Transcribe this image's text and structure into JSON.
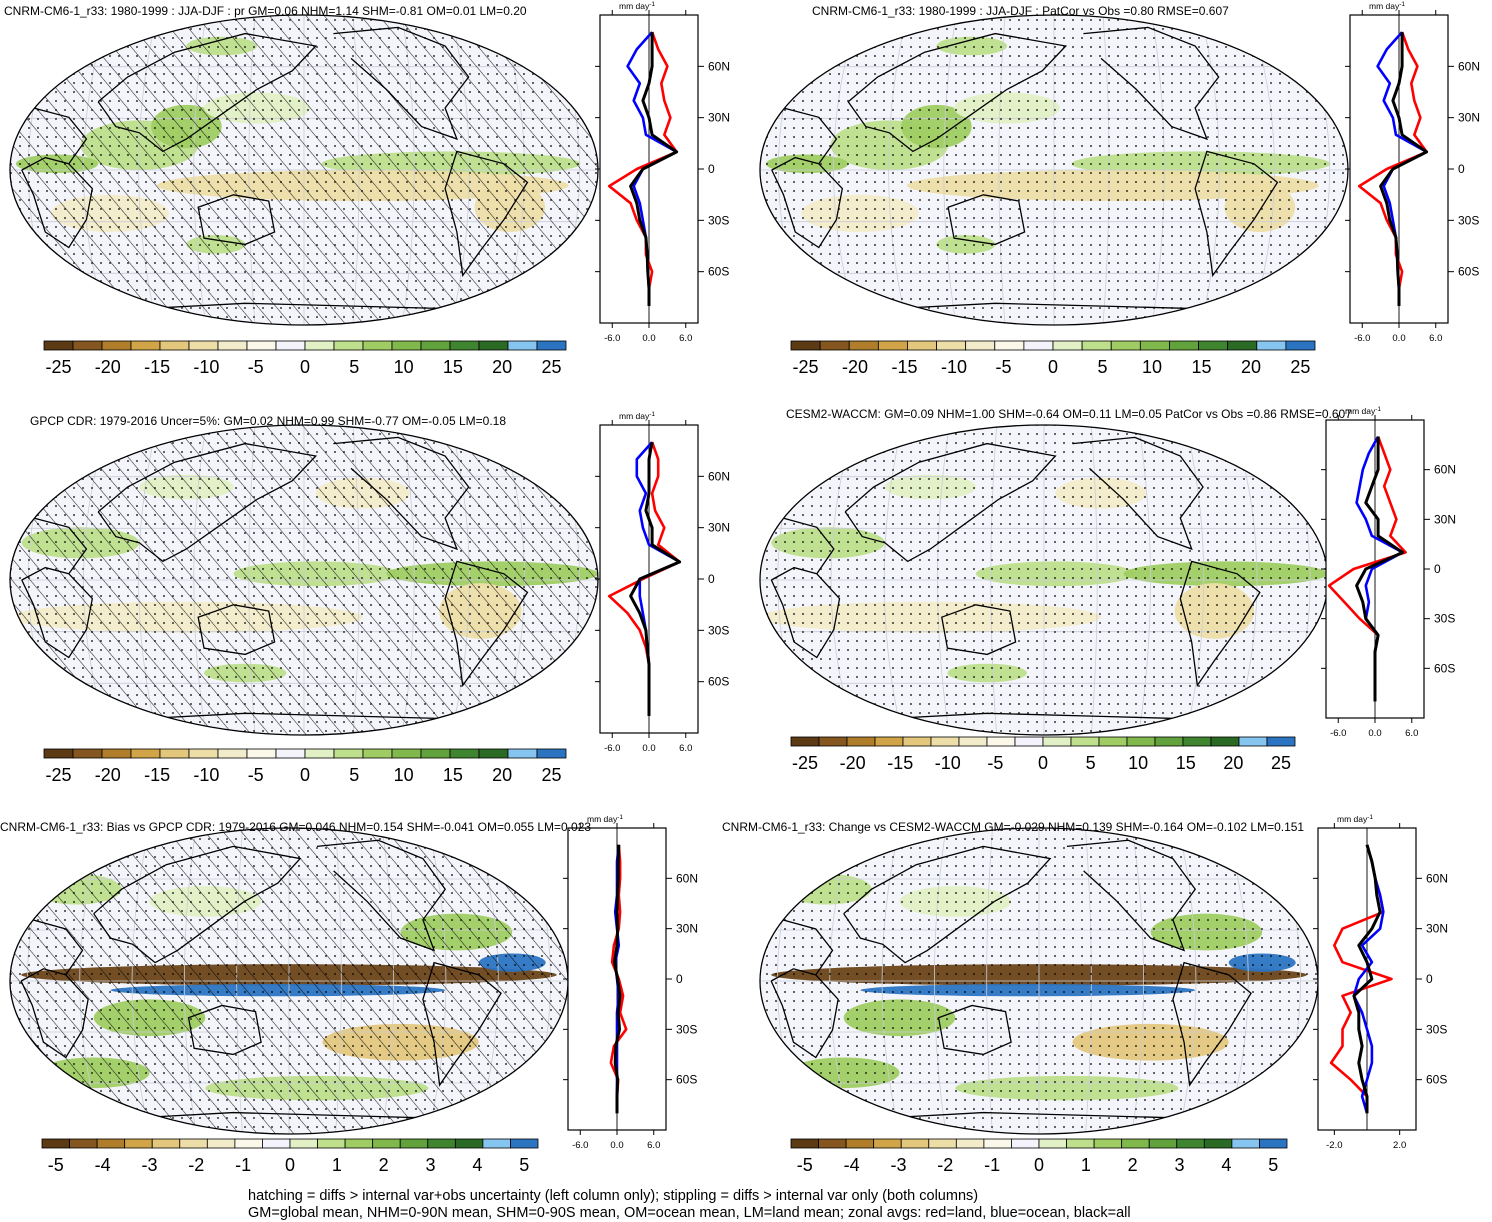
{
  "footer": {
    "line1": "hatching = diffs > internal var+obs uncertainty (left column only); stippling = diffs > internal var only (both columns)",
    "line2": "GM=global mean, NHM=0-90N mean, SHM=0-90S mean, OM=ocean mean, LM=land mean; zonal avgs: red=land, blue=ocean, black=all"
  },
  "chart_data": [
    {
      "type": "heatmap",
      "title": "CNRM-CM6-1_r33: 1980-1999 : JJA-DJF : pr GM=0.06 NHM=1.14 SHM=-0.81 OM=0.01 LM=0.20",
      "colorbar_ticks": [
        "-25",
        "-20",
        "-15",
        "-10",
        "-5",
        "0",
        "5",
        "10",
        "15",
        "20",
        "25"
      ],
      "zonal_units": "mm day",
      "zonal_units_sup": "-1",
      "zonal_xticks": [
        "-6.0",
        "0.0",
        "6.0"
      ],
      "zonal_xrange": [
        -8,
        8
      ],
      "lat_ticks": [
        "60N",
        "30N",
        "0",
        "30S",
        "60S"
      ],
      "hatching": true,
      "stippling": true,
      "zonal_series": [
        {
          "color": "#ff0000",
          "lat": [
            80,
            70,
            60,
            50,
            40,
            30,
            20,
            10,
            0,
            -10,
            -20,
            -30,
            -40,
            -50,
            -60,
            -70,
            -80
          ],
          "values": [
            0.5,
            1.5,
            3.0,
            2.0,
            2.5,
            3.5,
            2.5,
            4.5,
            -2.0,
            -6.5,
            -3.0,
            -2.0,
            -0.5,
            -0.5,
            0.5,
            0.0,
            0.0
          ]
        },
        {
          "color": "#0000ff",
          "lat": [
            80,
            70,
            60,
            50,
            40,
            30,
            20,
            10,
            0,
            -10,
            -20,
            -30,
            -40,
            -50,
            -60,
            -70,
            -80
          ],
          "values": [
            0.5,
            -2.0,
            -3.5,
            -1.5,
            -2.5,
            -1.0,
            -0.5,
            4.5,
            -1.0,
            -2.5,
            -1.5,
            -1.0,
            -0.5,
            -0.3,
            -0.2,
            0.0,
            0.0
          ]
        },
        {
          "color": "#000000",
          "lat": [
            80,
            70,
            60,
            50,
            40,
            30,
            20,
            10,
            0,
            -10,
            -20,
            -30,
            -40,
            -50,
            -60,
            -70,
            -80
          ],
          "values": [
            0.5,
            0.5,
            0.5,
            0.0,
            -1.0,
            0.0,
            0.5,
            4.5,
            -1.0,
            -3.0,
            -2.0,
            -1.5,
            -0.5,
            -0.3,
            -0.2,
            0.0,
            0.0
          ]
        }
      ]
    },
    {
      "type": "heatmap",
      "title": "CNRM-CM6-1_r33: 1980-1999 : JJA-DJF : PatCor vs Obs =0.80 RMSE=0.607",
      "colorbar_ticks": [
        "-25",
        "-20",
        "-15",
        "-10",
        "-5",
        "0",
        "5",
        "10",
        "15",
        "20",
        "25"
      ],
      "zonal_units": "mm day",
      "zonal_units_sup": "-1",
      "zonal_xticks": [
        "-6.0",
        "0.0",
        "6.0"
      ],
      "zonal_xrange": [
        -8,
        8
      ],
      "lat_ticks": [
        "60N",
        "30N",
        "0",
        "30S",
        "60S"
      ],
      "hatching": false,
      "stippling": true,
      "zonal_series": [
        {
          "color": "#ff0000",
          "lat": [
            80,
            70,
            60,
            50,
            40,
            30,
            20,
            10,
            0,
            -10,
            -20,
            -30,
            -40,
            -50,
            -60,
            -70,
            -80
          ],
          "values": [
            0.5,
            1.5,
            3.0,
            2.0,
            2.5,
            3.5,
            2.5,
            4.5,
            -2.0,
            -6.5,
            -3.0,
            -2.0,
            -0.5,
            -0.5,
            0.5,
            0.0,
            0.0
          ]
        },
        {
          "color": "#0000ff",
          "lat": [
            80,
            70,
            60,
            50,
            40,
            30,
            20,
            10,
            0,
            -10,
            -20,
            -30,
            -40,
            -50,
            -60,
            -70,
            -80
          ],
          "values": [
            0.5,
            -2.0,
            -3.5,
            -1.5,
            -2.5,
            -1.0,
            -0.5,
            4.5,
            -1.0,
            -2.5,
            -1.5,
            -1.0,
            -0.5,
            -0.3,
            -0.2,
            0.0,
            0.0
          ]
        },
        {
          "color": "#000000",
          "lat": [
            80,
            70,
            60,
            50,
            40,
            30,
            20,
            10,
            0,
            -10,
            -20,
            -30,
            -40,
            -50,
            -60,
            -70,
            -80
          ],
          "values": [
            0.5,
            0.5,
            0.5,
            0.0,
            -1.0,
            0.0,
            0.5,
            4.5,
            -1.0,
            -3.0,
            -2.0,
            -1.5,
            -0.5,
            -0.3,
            -0.2,
            0.0,
            0.0
          ]
        }
      ]
    },
    {
      "type": "heatmap",
      "title": "GPCP CDR: 1979-2016 Uncer=5%: GM=0.02 NHM=0.99 SHM=-0.77 OM=-0.05 LM=0.18",
      "colorbar_ticks": [
        "-25",
        "-20",
        "-15",
        "-10",
        "-5",
        "0",
        "5",
        "10",
        "15",
        "20",
        "25"
      ],
      "zonal_units": "mm day",
      "zonal_units_sup": "-1",
      "zonal_xticks": [
        "-6.0",
        "0.0",
        "6.0"
      ],
      "zonal_xrange": [
        -8,
        8
      ],
      "lat_ticks": [
        "60N",
        "30N",
        "0",
        "30S",
        "60S"
      ],
      "hatching": true,
      "stippling": true,
      "zonal_series": [
        {
          "color": "#ff0000",
          "lat": [
            80,
            70,
            60,
            50,
            40,
            30,
            20,
            10,
            0,
            -10,
            -20,
            -30,
            -40,
            -50,
            -60,
            -70,
            -80
          ],
          "values": [
            0.5,
            1.5,
            1.5,
            0.5,
            1.0,
            2.5,
            1.5,
            5.0,
            -1.0,
            -6.5,
            -3.5,
            -1.5,
            -0.5,
            0.0,
            0.0,
            0.0,
            0.0
          ]
        },
        {
          "color": "#0000ff",
          "lat": [
            80,
            70,
            60,
            50,
            40,
            30,
            20,
            10,
            0,
            -10,
            -20,
            -30,
            -40,
            -50,
            -60,
            -70,
            -80
          ],
          "values": [
            0.5,
            -2.0,
            -2.0,
            -0.5,
            -1.5,
            -1.0,
            0.0,
            5.0,
            -1.5,
            -1.5,
            -1.0,
            -0.5,
            -0.3,
            0.0,
            0.0,
            0.0,
            0.0
          ]
        },
        {
          "color": "#000000",
          "lat": [
            80,
            70,
            60,
            50,
            40,
            30,
            20,
            10,
            0,
            -10,
            -20,
            -30,
            -40,
            -50,
            -60,
            -70,
            -80
          ],
          "values": [
            0.5,
            0.0,
            0.0,
            0.0,
            -0.5,
            0.5,
            0.5,
            5.0,
            -1.5,
            -3.0,
            -1.5,
            -0.5,
            -0.3,
            0.0,
            0.0,
            0.0,
            0.0
          ]
        }
      ]
    },
    {
      "type": "heatmap",
      "title": "CESM2-WACCM: GM=0.09 NHM=1.00 SHM=-0.64 OM=0.11 LM=0.05 PatCor vs Obs =0.86 RMSE=0.607",
      "colorbar_ticks": [
        "-25",
        "-20",
        "-15",
        "-10",
        "-5",
        "0",
        "5",
        "10",
        "15",
        "20",
        "25"
      ],
      "zonal_units": "mm day",
      "zonal_units_sup": "-1",
      "zonal_xticks": [
        "-6.0",
        "0.0",
        "6.0"
      ],
      "zonal_xrange": [
        -8,
        8
      ],
      "lat_ticks": [
        "60N",
        "30N",
        "0",
        "30S",
        "60S"
      ],
      "hatching": false,
      "stippling": true,
      "zonal_series": [
        {
          "color": "#ff0000",
          "lat": [
            80,
            70,
            60,
            50,
            40,
            30,
            20,
            10,
            0,
            -10,
            -20,
            -30,
            -40,
            -50,
            -60,
            -70,
            -80
          ],
          "values": [
            0.5,
            1.5,
            2.5,
            1.5,
            2.5,
            3.5,
            2.5,
            5.0,
            -3.5,
            -7.5,
            -5.0,
            -2.5,
            0.5,
            0.0,
            0.0,
            0.0,
            0.0
          ]
        },
        {
          "color": "#0000ff",
          "lat": [
            80,
            70,
            60,
            50,
            40,
            30,
            20,
            10,
            0,
            -10,
            -20,
            -30,
            -40,
            -50,
            -60,
            -70,
            -80
          ],
          "values": [
            0.5,
            -1.0,
            -2.0,
            -2.5,
            -3.0,
            -1.5,
            -0.5,
            4.5,
            -0.5,
            -1.5,
            -1.0,
            -1.5,
            0.5,
            0.0,
            0.0,
            0.0,
            0.0
          ]
        },
        {
          "color": "#000000",
          "lat": [
            80,
            70,
            60,
            50,
            40,
            30,
            20,
            10,
            0,
            -10,
            -20,
            -30,
            -40,
            -50,
            -60,
            -70,
            -80
          ],
          "values": [
            0.5,
            0.5,
            0.5,
            -0.5,
            -1.5,
            0.5,
            0.5,
            4.5,
            -1.5,
            -3.0,
            -2.0,
            -1.5,
            0.5,
            0.0,
            0.0,
            0.0,
            0.0
          ]
        }
      ]
    },
    {
      "type": "heatmap",
      "title": "CNRM-CM6-1_r33: Bias vs GPCP CDR: 1979-2016 GM=0.046 NHM=0.154 SHM=-0.041 OM=0.055 LM=0.023",
      "colorbar_ticks": [
        "-5",
        "-4",
        "-3",
        "-2",
        "-1",
        "0",
        "1",
        "2",
        "3",
        "4",
        "5"
      ],
      "zonal_units": "mm day",
      "zonal_units_sup": "-1",
      "zonal_xticks": [
        "-6.0",
        "0.0",
        "6.0"
      ],
      "zonal_xrange": [
        -8,
        8
      ],
      "lat_ticks": [
        "60N",
        "30N",
        "0",
        "30S",
        "60S"
      ],
      "hatching": true,
      "stippling": true,
      "zonal_series": [
        {
          "color": "#ff0000",
          "lat": [
            80,
            70,
            60,
            50,
            40,
            30,
            20,
            10,
            0,
            -10,
            -20,
            -30,
            -40,
            -50,
            -60,
            -70,
            -80
          ],
          "values": [
            0.3,
            0.5,
            0.5,
            0.3,
            0.5,
            0.3,
            -0.5,
            -0.8,
            0.3,
            1.0,
            0.5,
            1.5,
            -0.5,
            -1.0,
            0.2,
            0.0,
            0.0
          ]
        },
        {
          "color": "#0000ff",
          "lat": [
            80,
            70,
            60,
            50,
            40,
            30,
            20,
            10,
            0,
            -10,
            -20,
            -30,
            -40,
            -50,
            -60,
            -70,
            -80
          ],
          "values": [
            0.3,
            0.0,
            0.0,
            0.0,
            -0.3,
            0.0,
            0.3,
            -0.3,
            0.0,
            0.3,
            0.0,
            0.0,
            0.0,
            0.0,
            0.0,
            0.0,
            0.0
          ]
        },
        {
          "color": "#000000",
          "lat": [
            80,
            70,
            60,
            50,
            40,
            30,
            20,
            10,
            0,
            -10,
            -20,
            -30,
            -40,
            -50,
            -60,
            -70,
            -80
          ],
          "values": [
            0.3,
            0.2,
            0.2,
            0.1,
            0.0,
            0.1,
            0.0,
            -0.4,
            0.1,
            0.5,
            0.2,
            0.4,
            -0.2,
            -0.3,
            0.1,
            0.0,
            0.0
          ]
        }
      ]
    },
    {
      "type": "heatmap",
      "title": "CNRM-CM6-1_r33: Change vs CESM2-WACCM GM=-0.029 NHM=0.139 SHM=-0.164 OM=-0.102 LM=0.151",
      "colorbar_ticks": [
        "-5",
        "-4",
        "-3",
        "-2",
        "-1",
        "0",
        "1",
        "2",
        "3",
        "4",
        "5"
      ],
      "zonal_units": "mm day",
      "zonal_units_sup": "-1",
      "zonal_xticks": [
        "-2.0",
        "2.0"
      ],
      "zonal_xrange": [
        -3,
        3
      ],
      "lat_ticks": [
        "60N",
        "30N",
        "0",
        "30S",
        "60S"
      ],
      "hatching": false,
      "stippling": true,
      "zonal_series": [
        {
          "color": "#ff0000",
          "lat": [
            80,
            70,
            60,
            50,
            40,
            30,
            20,
            10,
            0,
            -10,
            -20,
            -30,
            -40,
            -50,
            -60,
            -70,
            -80
          ],
          "values": [
            0.0,
            0.3,
            0.5,
            0.8,
            1.0,
            -1.5,
            -2.0,
            -1.5,
            1.5,
            -1.5,
            -1.0,
            -1.5,
            -1.5,
            -2.2,
            -1.0,
            0.0,
            0.0
          ]
        },
        {
          "color": "#0000ff",
          "lat": [
            80,
            70,
            60,
            50,
            40,
            30,
            20,
            10,
            0,
            -10,
            -20,
            -30,
            -40,
            -50,
            -60,
            -70,
            -80
          ],
          "values": [
            0.0,
            0.3,
            0.5,
            0.8,
            1.0,
            0.8,
            -0.3,
            0.3,
            -0.5,
            -0.8,
            -0.3,
            0.0,
            0.3,
            0.3,
            0.0,
            -0.3,
            0.0
          ]
        },
        {
          "color": "#000000",
          "lat": [
            80,
            70,
            60,
            50,
            40,
            30,
            20,
            10,
            0,
            -10,
            -20,
            -30,
            -40,
            -50,
            -60,
            -70,
            -80
          ],
          "values": [
            0.0,
            0.3,
            0.5,
            0.6,
            0.8,
            0.3,
            -0.5,
            0.0,
            0.3,
            -0.8,
            -0.5,
            -0.5,
            -0.3,
            -0.5,
            -0.3,
            0.0,
            0.0
          ]
        }
      ]
    }
  ]
}
